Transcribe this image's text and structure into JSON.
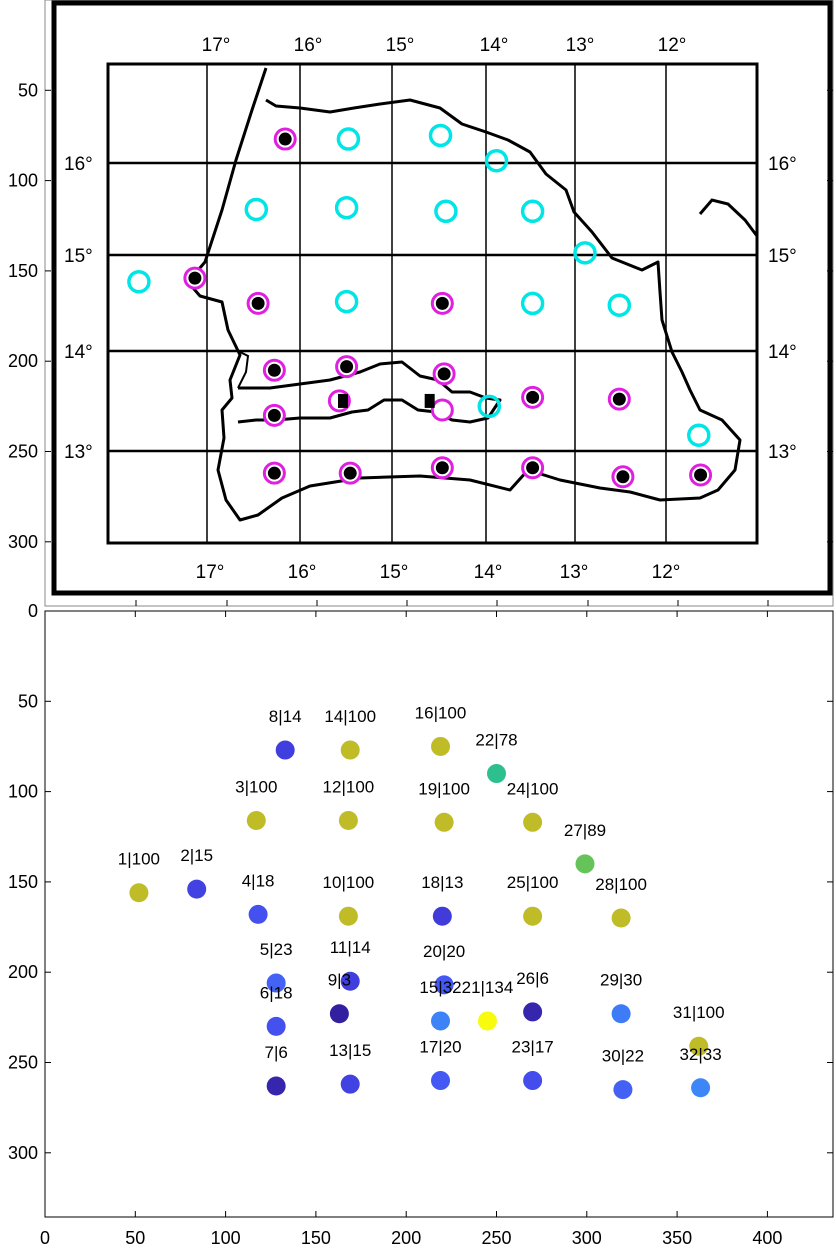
{
  "chart_data": [
    {
      "type": "scatter",
      "title": "",
      "xlabel": "",
      "ylabel": "",
      "y_reversed": true,
      "xlim": [
        0,
        435
      ],
      "ylim": [
        0,
        335
      ],
      "xticks": [],
      "yticks": [
        50,
        100,
        150,
        200,
        250,
        300
      ],
      "xtick_labels": [],
      "ytick_labels": [
        "50",
        "100",
        "150",
        "200",
        "250",
        "300"
      ],
      "longitude_labels": [
        "17°",
        "16°",
        "15°",
        "14°",
        "13°",
        "12°"
      ],
      "latitude_labels": [
        "16°",
        "15°",
        "14°",
        "13°"
      ],
      "series": [
        {
          "marker": "filled-circle-magenta-ring",
          "color": "#000000",
          "ring_color": "#e020e0",
          "points": [
            [
              83,
              154
            ],
            [
              118,
              168
            ],
            [
              127,
              205
            ],
            [
              127,
              230
            ],
            [
              127,
              262
            ],
            [
              133,
              77
            ],
            [
              167,
              203
            ],
            [
              220,
              168
            ],
            [
              221,
              207
            ],
            [
              270,
              220
            ],
            [
              270,
              259
            ],
            [
              318,
              221
            ],
            [
              320,
              264
            ],
            [
              363,
              263
            ],
            [
              169,
              262
            ],
            [
              220,
              259
            ]
          ]
        },
        {
          "marker": "open-circle-cyan",
          "color": "#00e5e5",
          "points": [
            [
              52,
              156
            ],
            [
              117,
              116
            ],
            [
              168,
              77
            ],
            [
              167,
              115
            ],
            [
              167,
              167
            ],
            [
              219,
              75
            ],
            [
              222,
              117
            ],
            [
              250,
              89
            ],
            [
              270,
              117
            ],
            [
              270,
              168
            ],
            [
              299,
              140
            ],
            [
              318,
              169
            ],
            [
              362,
              241
            ],
            [
              246,
              225
            ]
          ]
        },
        {
          "marker": "magenta-ring",
          "color": "#e020e0",
          "points": [
            [
              163,
              222
            ],
            [
              220,
              227
            ]
          ]
        },
        {
          "marker": "black-square",
          "color": "#000000",
          "points": [
            [
              165,
              222
            ],
            [
              213,
              222
            ]
          ]
        }
      ]
    },
    {
      "type": "scatter",
      "title": "",
      "xlabel": "",
      "ylabel": "",
      "y_reversed": true,
      "xlim": [
        0,
        435
      ],
      "ylim": [
        0,
        335
      ],
      "xticks": [
        0,
        50,
        100,
        150,
        200,
        250,
        300,
        350,
        400
      ],
      "yticks": [
        0,
        50,
        100,
        150,
        200,
        250,
        300
      ],
      "xtick_labels": [
        "0",
        "50",
        "100",
        "150",
        "200",
        "250",
        "300",
        "350",
        "400"
      ],
      "ytick_labels": [
        "0",
        "50",
        "100",
        "150",
        "200",
        "250",
        "300"
      ],
      "points": [
        {
          "label": "1|100",
          "x": 52,
          "y": 156,
          "color": "#bfbc28"
        },
        {
          "label": "2|15",
          "x": 84,
          "y": 154,
          "color": "#4242e3"
        },
        {
          "label": "3|100",
          "x": 117,
          "y": 116,
          "color": "#bfbc28"
        },
        {
          "label": "4|18",
          "x": 118,
          "y": 168,
          "color": "#4451ef"
        },
        {
          "label": "5|23",
          "x": 128,
          "y": 206,
          "color": "#4463f5"
        },
        {
          "label": "6|18",
          "x": 128,
          "y": 230,
          "color": "#4451ef"
        },
        {
          "label": "7|6",
          "x": 128,
          "y": 263,
          "color": "#3625ad"
        },
        {
          "label": "8|14",
          "x": 133,
          "y": 77,
          "color": "#403ede"
        },
        {
          "label": "9|3",
          "x": 163,
          "y": 223,
          "color": "#3220a0"
        },
        {
          "label": "10|100",
          "x": 168,
          "y": 169,
          "color": "#bfbc28"
        },
        {
          "label": "11|14",
          "x": 169,
          "y": 205,
          "color": "#403ede"
        },
        {
          "label": "12|100",
          "x": 168,
          "y": 116,
          "color": "#bfbc28"
        },
        {
          "label": "13|15",
          "x": 169,
          "y": 262,
          "color": "#4242e3"
        },
        {
          "label": "14|100",
          "x": 169,
          "y": 77,
          "color": "#bfbc28"
        },
        {
          "label": "15|32",
          "x": 219,
          "y": 227,
          "color": "#3d82f7"
        },
        {
          "label": "16|100",
          "x": 219,
          "y": 75,
          "color": "#bfbc28"
        },
        {
          "label": "17|20",
          "x": 219,
          "y": 260,
          "color": "#4458f3"
        },
        {
          "label": "18|13",
          "x": 220,
          "y": 169,
          "color": "#403bd9"
        },
        {
          "label": "19|100",
          "x": 221,
          "y": 117,
          "color": "#bfbc28"
        },
        {
          "label": "20|20",
          "x": 221,
          "y": 207,
          "color": "#4458f3"
        },
        {
          "label": "21|134",
          "x": 245,
          "y": 227,
          "color": "#f9fb0e"
        },
        {
          "label": "22|78",
          "x": 250,
          "y": 90,
          "color": "#2ebf8e"
        },
        {
          "label": "23|17",
          "x": 270,
          "y": 260,
          "color": "#444cec"
        },
        {
          "label": "24|100",
          "x": 270,
          "y": 117,
          "color": "#bfbc28"
        },
        {
          "label": "25|100",
          "x": 270,
          "y": 169,
          "color": "#bfbc28"
        },
        {
          "label": "26|6",
          "x": 270,
          "y": 222,
          "color": "#3625ad"
        },
        {
          "label": "27|89",
          "x": 299,
          "y": 140,
          "color": "#65c35a"
        },
        {
          "label": "28|100",
          "x": 319,
          "y": 170,
          "color": "#bfbc28"
        },
        {
          "label": "29|30",
          "x": 319,
          "y": 223,
          "color": "#3e7cf7"
        },
        {
          "label": "30|22",
          "x": 320,
          "y": 265,
          "color": "#4560f4"
        },
        {
          "label": "31|100",
          "x": 362,
          "y": 241,
          "color": "#bfbc28"
        },
        {
          "label": "32|33",
          "x": 363,
          "y": 264,
          "color": "#3c86f7"
        }
      ]
    }
  ]
}
